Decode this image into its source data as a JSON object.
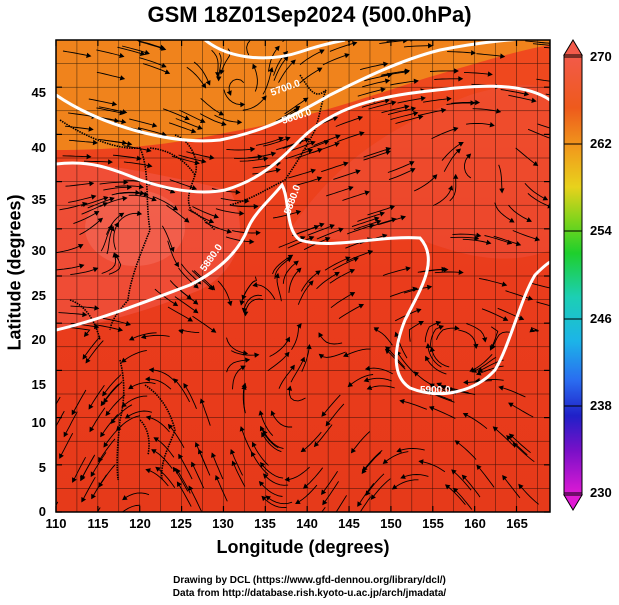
{
  "figure": {
    "title": "GSM 18Z01Sep2024 (500.0hPa)",
    "xlabel": "Longitude (degrees)",
    "ylabel": "Latitude  (degrees)",
    "credit_line_1": "Drawing by DCL (https://www.gfd-dennou.org/library/dcl/)",
    "credit_line_2": "Data from http://database.rish.kyoto-u.ac.jp/arch/jmadata/"
  },
  "map": {
    "lon_range": [
      110,
      169
    ],
    "lat_range": [
      0,
      50
    ],
    "x_ticks": [
      "110",
      "115",
      "120",
      "125",
      "130",
      "135",
      "140",
      "145",
      "150",
      "155",
      "160",
      "165"
    ],
    "y_ticks": [
      "0",
      "5",
      "10",
      "15",
      "20",
      "25",
      "30",
      "35",
      "40",
      "45"
    ],
    "contour_labels": [
      "5700.0",
      "5800.0",
      "5880.0",
      "5880.0",
      "5900.0"
    ],
    "colors": {
      "warm": "#e83a1c",
      "warm_light": "#f25a4a",
      "orange": "#f08a1c",
      "yellow": "#e8c81c",
      "green": "#3cc83c",
      "contour": "#ffffff"
    }
  },
  "colorbar": {
    "ticks": [
      "270",
      "262",
      "254",
      "246",
      "238",
      "230"
    ],
    "colors": [
      "#f25a4a",
      "#e83a1c",
      "#f08a1c",
      "#e8c81c",
      "#9ad81c",
      "#2ec82e",
      "#1cc8a0",
      "#1cb4e8",
      "#2a6cf0",
      "#2020c8",
      "#7a10c8",
      "#e01ad4"
    ]
  }
}
